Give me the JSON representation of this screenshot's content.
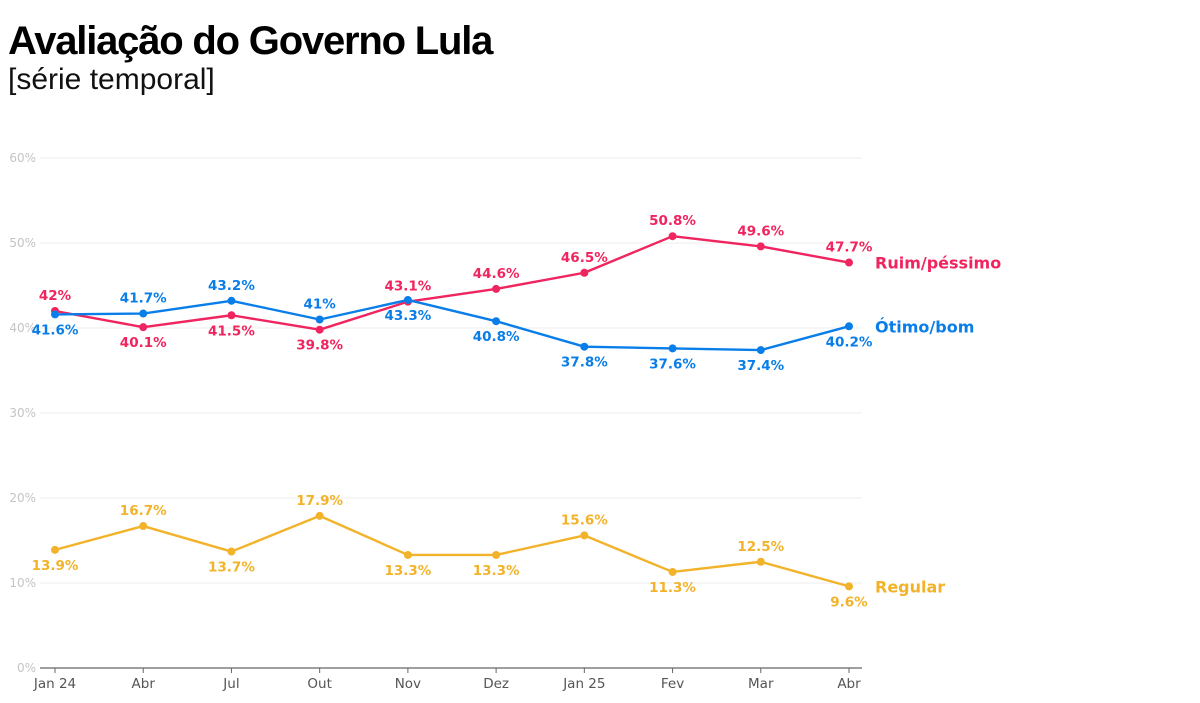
{
  "header": {
    "title": "Avaliação do Governo Lula",
    "subtitle": "[série temporal]"
  },
  "chart_data": {
    "type": "line",
    "title": "Avaliação do Governo Lula",
    "subtitle": "[série temporal]",
    "xlabel": "",
    "ylabel": "",
    "categories": [
      "Jan 24",
      "Abr",
      "Jul",
      "Out",
      "Nov",
      "Dez",
      "Jan 25",
      "Fev",
      "Mar",
      "Abr"
    ],
    "ylim": [
      0,
      60
    ],
    "yticks": [
      0,
      10,
      20,
      30,
      40,
      50,
      60
    ],
    "ytick_labels": [
      "0%",
      "10%",
      "20%",
      "30%",
      "40%",
      "50%",
      "60%"
    ],
    "grid": true,
    "legend": "direct labels at right end of each line",
    "series": [
      {
        "name": "Ruim/péssimo",
        "color": "#f0245e",
        "values": [
          42,
          40.1,
          41.5,
          39.8,
          43.1,
          44.6,
          46.5,
          50.8,
          49.6,
          47.7
        ],
        "labels": [
          "42%",
          "40.1%",
          "41.5%",
          "39.8%",
          "43.1%",
          "44.6%",
          "46.5%",
          "50.8%",
          "49.6%",
          "47.7%"
        ],
        "label_pos": [
          "above",
          "below",
          "below",
          "below",
          "above",
          "above",
          "above",
          "above",
          "above",
          "above"
        ]
      },
      {
        "name": "Ótimo/bom",
        "color": "#0a7ee8",
        "values": [
          41.6,
          41.7,
          43.2,
          41,
          43.3,
          40.8,
          37.8,
          37.6,
          37.4,
          40.2
        ],
        "labels": [
          "41.6%",
          "41.7%",
          "43.2%",
          "41%",
          "43.3%",
          "40.8%",
          "37.8%",
          "37.6%",
          "37.4%",
          "40.2%"
        ],
        "label_pos": [
          "below",
          "above",
          "above",
          "above",
          "below",
          "below",
          "below",
          "below",
          "below",
          "below"
        ]
      },
      {
        "name": "Regular",
        "color": "#f2b32a",
        "values": [
          13.9,
          16.7,
          13.7,
          17.9,
          13.3,
          13.3,
          15.6,
          11.3,
          12.5,
          9.6
        ],
        "labels": [
          "13.9%",
          "16.7%",
          "13.7%",
          "17.9%",
          "13.3%",
          "13.3%",
          "15.6%",
          "11.3%",
          "12.5%",
          "9.6%"
        ],
        "label_pos": [
          "below",
          "above",
          "below",
          "above",
          "below",
          "below",
          "above",
          "below",
          "above",
          "below"
        ]
      }
    ]
  }
}
